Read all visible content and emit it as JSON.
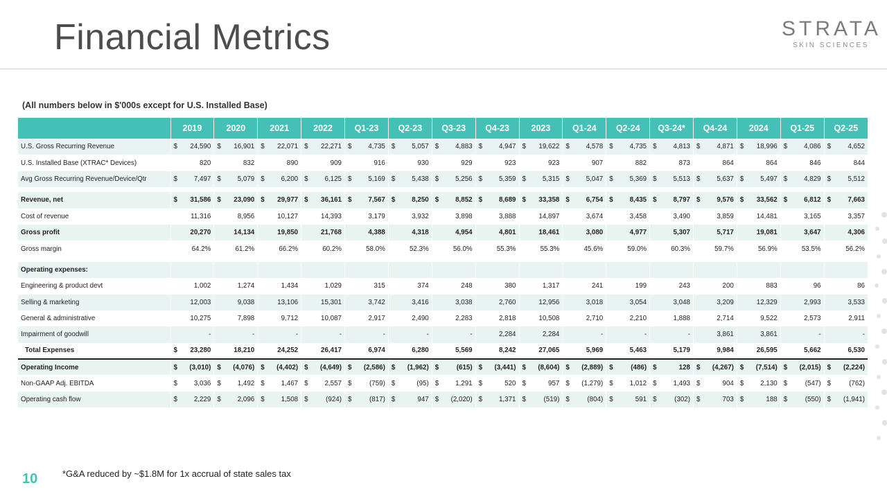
{
  "title": "Financial Metrics",
  "logo": {
    "name": "STRATA",
    "sub": "SKIN SCIENCES"
  },
  "note": "(All numbers below in $'000s except for U.S. Installed Base)",
  "columns": [
    "2019",
    "2020",
    "2021",
    "2022",
    "Q1-23",
    "Q2-23",
    "Q3-23",
    "Q4-23",
    "2023",
    "Q1-24",
    "Q2-24",
    "Q3-24*",
    "Q4-24",
    "2024",
    "Q1-25",
    "Q2-25"
  ],
  "rows": [
    {
      "label": "U.S. Gross Recurring Revenue",
      "dollar": true,
      "shade": true,
      "values": [
        "24,590",
        "16,901",
        "22,071",
        "22,271",
        "4,735",
        "5,057",
        "4,883",
        "4,947",
        "19,622",
        "4,578",
        "4,735",
        "4,813",
        "4,871",
        "18,996",
        "4,086",
        "4,652"
      ]
    },
    {
      "label": "U.S. Installed Base (XTRAC* Devices)",
      "dollar": false,
      "values": [
        "820",
        "832",
        "890",
        "909",
        "916",
        "930",
        "929",
        "923",
        "923",
        "907",
        "882",
        "873",
        "864",
        "864",
        "846",
        "844"
      ]
    },
    {
      "label": "Avg Gross Recurring Revenue/Device/Qtr",
      "dollar": true,
      "shade": true,
      "values": [
        "7,497",
        "5,079",
        "6,200",
        "6,125",
        "5,169",
        "5,438",
        "5,256",
        "5,359",
        "5,315",
        "5,047",
        "5,369",
        "5,513",
        "5,637",
        "5,497",
        "4,829",
        "5,512"
      ]
    },
    {
      "gap": true
    },
    {
      "label": "Revenue, net",
      "dollar": true,
      "bold": true,
      "shade": true,
      "values": [
        "31,586",
        "23,090",
        "29,977",
        "36,161",
        "7,567",
        "8,250",
        "8,852",
        "8,689",
        "33,358",
        "6,754",
        "8,435",
        "8,797",
        "9,576",
        "33,562",
        "6,812",
        "7,663"
      ]
    },
    {
      "label": "Cost of revenue",
      "dollar": false,
      "values": [
        "11,316",
        "8,956",
        "10,127",
        "14,393",
        "3,179",
        "3,932",
        "3,898",
        "3,888",
        "14,897",
        "3,674",
        "3,458",
        "3,490",
        "3,859",
        "14,481",
        "3,165",
        "3,357"
      ]
    },
    {
      "label": "Gross profit",
      "dollar": false,
      "bold": true,
      "shade": true,
      "values": [
        "20,270",
        "14,134",
        "19,850",
        "21,768",
        "4,388",
        "4,318",
        "4,954",
        "4,801",
        "18,461",
        "3,080",
        "4,977",
        "5,307",
        "5,717",
        "19,081",
        "3,647",
        "4,306"
      ]
    },
    {
      "label": "Gross margin",
      "dollar": false,
      "values": [
        "64.2%",
        "61.2%",
        "66.2%",
        "60.2%",
        "58.0%",
        "52.3%",
        "56.0%",
        "55.3%",
        "55.3%",
        "45.6%",
        "59.0%",
        "60.3%",
        "59.7%",
        "56.9%",
        "53.5%",
        "56.2%"
      ]
    },
    {
      "gap": true
    },
    {
      "label": "Operating expenses:",
      "dollar": false,
      "bold": true,
      "shade": true,
      "values": [
        "",
        "",
        "",
        "",
        "",
        "",
        "",
        "",
        "",
        "",
        "",
        "",
        "",
        "",
        "",
        ""
      ]
    },
    {
      "label": "Engineering & product devt",
      "dollar": false,
      "values": [
        "1,002",
        "1,274",
        "1,434",
        "1,029",
        "315",
        "374",
        "248",
        "380",
        "1,317",
        "241",
        "199",
        "243",
        "200",
        "883",
        "96",
        "86"
      ]
    },
    {
      "label": "Selling & marketing",
      "dollar": false,
      "shade": true,
      "values": [
        "12,003",
        "9,038",
        "13,106",
        "15,301",
        "3,742",
        "3,416",
        "3,038",
        "2,760",
        "12,956",
        "3,018",
        "3,054",
        "3,048",
        "3,209",
        "12,329",
        "2,993",
        "3,533"
      ]
    },
    {
      "label": "General & administrative",
      "dollar": false,
      "values": [
        "10,275",
        "7,898",
        "9,712",
        "10,087",
        "2,917",
        "2,490",
        "2,283",
        "2,818",
        "10,508",
        "2,710",
        "2,210",
        "1,888",
        "2,714",
        "9,522",
        "2,573",
        "2,911"
      ]
    },
    {
      "label": "Impairment of goodwill",
      "dollar": false,
      "shade": true,
      "values": [
        "-",
        "-",
        "-",
        "-",
        "-",
        "-",
        "-",
        "2,284",
        "2,284",
        "-",
        "-",
        "-",
        "3,861",
        "3,861",
        "-",
        "-"
      ]
    },
    {
      "label": "Total Expenses",
      "dollar": "first",
      "bold": true,
      "indent": true,
      "total": true,
      "values": [
        "23,280",
        "18,210",
        "24,252",
        "26,417",
        "6,974",
        "6,280",
        "5,569",
        "8,242",
        "27,065",
        "5,969",
        "5,463",
        "5,179",
        "9,984",
        "26,595",
        "5,662",
        "6,530"
      ]
    },
    {
      "label": "Operating Income",
      "dollar": true,
      "bold": true,
      "shade": true,
      "values": [
        "(3,010)",
        "(4,076)",
        "(4,402)",
        "(4,649)",
        "(2,586)",
        "(1,962)",
        "(615)",
        "(3,441)",
        "(8,604)",
        "(2,889)",
        "(486)",
        "128",
        "(4,267)",
        "(7,514)",
        "(2,015)",
        "(2,224)"
      ]
    },
    {
      "label": "Non-GAAP Adj. EBITDA",
      "dollar": true,
      "values": [
        "3,036",
        "1,492",
        "1,467",
        "2,557",
        "(759)",
        "(95)",
        "1,291",
        "520",
        "957",
        "(1,279)",
        "1,012",
        "1,493",
        "904",
        "2,130",
        "(547)",
        "(762)"
      ]
    },
    {
      "label": "Operating cash flow",
      "dollar": true,
      "shade": true,
      "values": [
        "2,229",
        "2,096",
        "1,508",
        "(924)",
        "(817)",
        "947",
        "(2,020)",
        "1,371",
        "(519)",
        "(804)",
        "591",
        "(302)",
        "703",
        "188",
        "(550)",
        "(1,941)"
      ]
    }
  ],
  "page_number": "10",
  "footnote": "*G&A reduced by ~$1.8M for 1x accrual of state sales tax"
}
